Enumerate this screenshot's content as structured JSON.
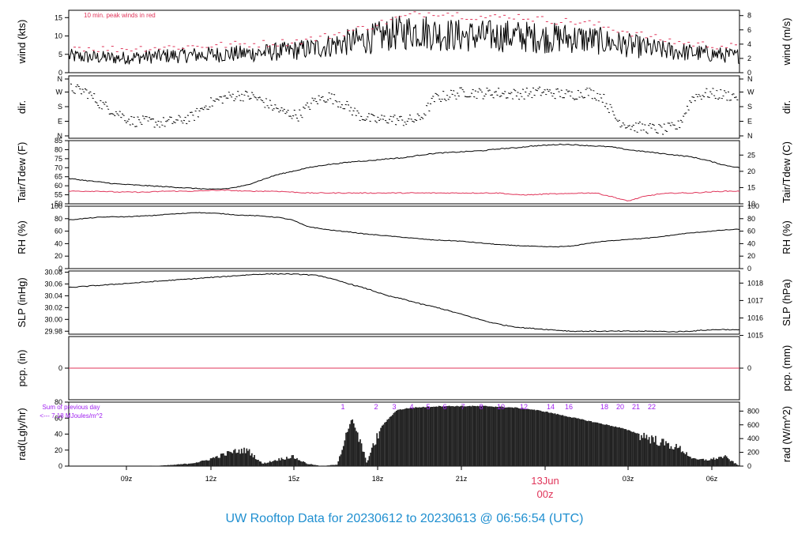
{
  "title": "UW Rooftop Data for 20230612  to  20230613 @ 06:56:54  (UTC)",
  "colors": {
    "title": "#1f8fd0",
    "peak": "#e0355a",
    "series": "#000000",
    "annotation": "#a020f0",
    "date": "#e0355a"
  },
  "chart_data": [
    {
      "panel": "wind",
      "type": "line",
      "ylabel": "wind (kts)",
      "ylabel_right": "wind (m/s)",
      "ylim": [
        0,
        17
      ],
      "yticks": [
        0,
        5,
        10,
        15
      ],
      "yticks_right": [
        0,
        2,
        4,
        6,
        8
      ],
      "annotation": "10 min. peak winds in red",
      "series": [
        {
          "values": [
            4.5,
            4.2,
            4.0,
            4.3,
            4.6,
            4.8,
            5.0,
            5.2,
            5.5,
            6.0,
            6.8,
            8.0,
            9.0,
            10.5,
            11.5,
            10.5,
            10.0,
            10.0,
            10.0,
            9.5,
            9.5,
            9.0,
            8.0,
            7.0,
            6.0,
            5.5,
            5.0,
            4.5
          ]
        },
        {
          "values": [
            7.0,
            6.5,
            6.5,
            6.8,
            7.0,
            7.2,
            7.5,
            7.8,
            8.0,
            8.5,
            9.5,
            11.0,
            12.5,
            14.5,
            16.0,
            16.5,
            15.5,
            15.0,
            15.5,
            14.5,
            14.0,
            13.5,
            12.0,
            10.5,
            9.0,
            8.0,
            7.5,
            7.0
          ]
        }
      ]
    },
    {
      "panel": "dir",
      "type": "scatter",
      "ylabel": "dir.",
      "ylabel_right": "dir.",
      "yticks": [
        "N",
        "E",
        "S",
        "W",
        "N"
      ]
    },
    {
      "panel": "temp",
      "type": "line",
      "ylabel": "Tair/Tdew (F)",
      "ylabel_right": "Tair/Tdew (C)",
      "ylim": [
        50,
        85
      ],
      "yticks": [
        50,
        55,
        60,
        65,
        70,
        75,
        80,
        85
      ],
      "yticks_right": [
        10,
        15,
        20,
        25
      ],
      "series": [
        {
          "values": [
            64.0,
            63.0,
            62.0,
            61.0,
            60.5,
            60.0,
            59.5,
            59.0,
            58.5,
            58.0,
            58.5,
            60.0,
            63.0,
            66.0,
            68.0,
            70.0,
            71.5,
            72.5,
            73.5,
            74.0,
            75.0,
            75.5,
            77.0,
            78.0,
            78.5,
            79.0,
            79.5,
            80.5,
            81.0,
            82.0,
            82.5,
            83.0,
            82.5,
            82.0,
            81.5,
            80.0,
            79.0,
            78.0,
            77.0,
            76.0,
            74.0,
            71.5,
            70.0
          ]
        },
        {
          "values": [
            57.0,
            57.0,
            57.0,
            56.5,
            56.5,
            56.5,
            57.0,
            57.0,
            57.0,
            57.5,
            57.5,
            57.0,
            57.0,
            57.0,
            56.5,
            56.0,
            56.0,
            56.0,
            56.0,
            56.0,
            56.0,
            56.0,
            56.0,
            56.0,
            56.0,
            56.0,
            56.0,
            56.0,
            55.0,
            55.0,
            55.5,
            55.5,
            56.0,
            56.0,
            54.0,
            51.5,
            54.0,
            55.5,
            56.0,
            56.0,
            56.5,
            57.0,
            57.0
          ]
        }
      ]
    },
    {
      "panel": "rh",
      "type": "line",
      "ylabel": "RH (%)",
      "ylabel_right": "RH (%)",
      "ylim": [
        0,
        100
      ],
      "yticks": [
        0,
        20,
        40,
        60,
        80,
        100
      ],
      "yticks_right": [
        0,
        20,
        40,
        60,
        80,
        100
      ],
      "series": [
        {
          "values": [
            78,
            80,
            82,
            83,
            83,
            84,
            85,
            87,
            88,
            90,
            89,
            88,
            86,
            85,
            84,
            82,
            78,
            68,
            64,
            61,
            59,
            56,
            54,
            52,
            50,
            48,
            46,
            45,
            44,
            42,
            40,
            38,
            37,
            36,
            35,
            35,
            36,
            40,
            43,
            45,
            47,
            48,
            50,
            53,
            56,
            58,
            60,
            62,
            63
          ]
        }
      ]
    },
    {
      "panel": "slp",
      "type": "line",
      "ylabel": "SLP (inHg)",
      "ylabel_right": "SLP (hPa)",
      "ylim": [
        29.975,
        30.082
      ],
      "yticks": [
        29.98,
        30.0,
        30.02,
        30.04,
        30.06,
        30.08
      ],
      "yticks_right": [
        1015,
        1016,
        1017,
        1018
      ],
      "series": [
        {
          "values": [
            30.054,
            30.056,
            30.058,
            30.06,
            30.062,
            30.064,
            30.066,
            30.068,
            30.07,
            30.072,
            30.074,
            30.076,
            30.077,
            30.077,
            30.076,
            30.074,
            30.066,
            30.058,
            30.05,
            30.04,
            30.034,
            30.026,
            30.02,
            30.012,
            30.004,
            29.996,
            29.99,
            29.986,
            29.984,
            29.982,
            29.98,
            29.98,
            29.98,
            29.98,
            29.98,
            29.98,
            29.979,
            29.98,
            29.982,
            29.983,
            29.982
          ]
        }
      ]
    },
    {
      "panel": "pcp",
      "type": "line",
      "ylabel": "pcp. (in)",
      "ylabel_right": "pcp. (mm)",
      "yticks": [
        0
      ],
      "yticks_right": [
        0
      ],
      "series": [
        {
          "values": [
            0,
            0
          ]
        }
      ]
    },
    {
      "panel": "rad",
      "type": "area",
      "ylabel": "rad(Lgly/hr)",
      "ylabel_right": "rad (W/m^2)",
      "ylim": [
        0,
        80
      ],
      "yticks": [
        0,
        20,
        40,
        60,
        80
      ],
      "yticks_right": [
        0,
        200,
        400,
        600,
        800
      ],
      "annotation_line1": "Sum of previous day",
      "annotation_line2": "<--- 7.18 MJoules/m^2",
      "hour_labels": [
        "1",
        "2",
        "3",
        "4",
        "5",
        "6",
        "7",
        "8",
        "10",
        "12",
        "14",
        "16",
        "18",
        "20",
        "21",
        "22"
      ],
      "series": [
        {
          "values": [
            0,
            0,
            0,
            0,
            0,
            0,
            0.5,
            1.5,
            3,
            6,
            12,
            18,
            20,
            3,
            8,
            12,
            3,
            0,
            2,
            60,
            5,
            50,
            70,
            73,
            74,
            75,
            75,
            75,
            75,
            74,
            73,
            71,
            68,
            64,
            60,
            56,
            52,
            48,
            42,
            35,
            28,
            22,
            8,
            8,
            12,
            0
          ]
        }
      ]
    },
    {
      "panel": "time_axis",
      "type": "line",
      "xticks": [
        "09z",
        "12z",
        "15z",
        "18z",
        "21z",
        "00z",
        "03z",
        "06z"
      ],
      "date_label": "13Jun"
    }
  ]
}
